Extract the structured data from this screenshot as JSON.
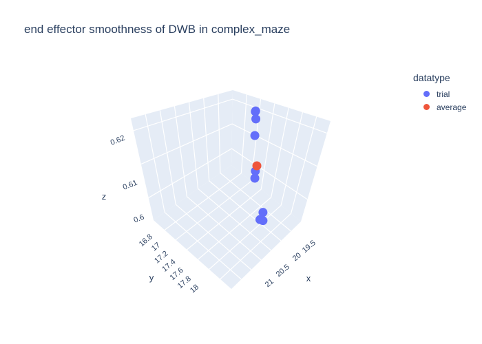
{
  "chart_data": {
    "type": "scatter3d",
    "title": "end effector smoothness of DWB in complex_maze",
    "xlabel": "x",
    "ylabel": "y",
    "zlabel": "z",
    "x_ticks": [
      "19.5",
      "20",
      "20.5",
      "21"
    ],
    "y_ticks": [
      "16.8",
      "17",
      "17.2",
      "17.4",
      "17.6",
      "17.8",
      "18"
    ],
    "z_ticks": [
      "0.6",
      "0.61",
      "0.62"
    ],
    "xlim": [
      19.2,
      21.3
    ],
    "ylim": [
      16.7,
      18.1
    ],
    "zlim": [
      0.597,
      0.625
    ],
    "legend": {
      "title": "datatype",
      "items": [
        {
          "name": "trial",
          "color": "#636efa"
        },
        {
          "name": "average",
          "color": "#ef553b"
        }
      ]
    },
    "series": [
      {
        "name": "trial",
        "color": "#636efa",
        "points": [
          {
            "x": 20.2,
            "y": 17.5,
            "z": 0.6168
          },
          {
            "x": 20.1,
            "y": 17.4,
            "z": 0.6195
          },
          {
            "x": 20.15,
            "y": 17.45,
            "z": 0.6215
          },
          {
            "x": 20.18,
            "y": 17.46,
            "z": 0.6218
          },
          {
            "x": 20.3,
            "y": 17.55,
            "z": 0.6098
          },
          {
            "x": 20.35,
            "y": 17.6,
            "z": 0.6087
          },
          {
            "x": 20.3,
            "y": 17.3,
            "z": 0.5998
          },
          {
            "x": 20.6,
            "y": 17.6,
            "z": 0.6008
          },
          {
            "x": 20.9,
            "y": 17.7,
            "z": 0.6022
          }
        ]
      },
      {
        "name": "average",
        "color": "#ef553b",
        "points": [
          {
            "x": 20.3,
            "y": 17.5,
            "z": 0.6107
          }
        ]
      }
    ]
  }
}
